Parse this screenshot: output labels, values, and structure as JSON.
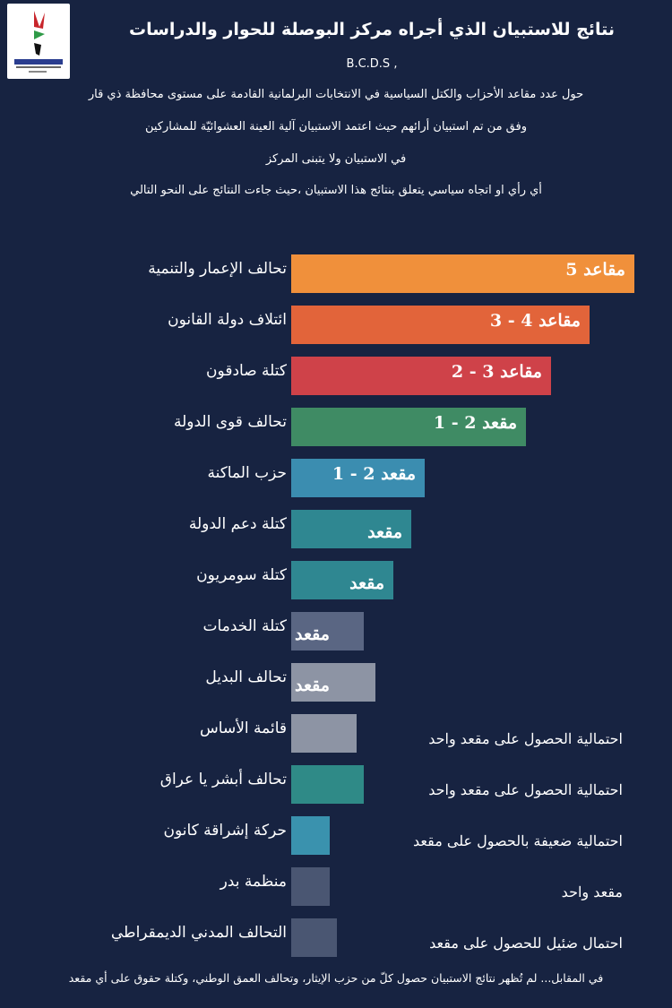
{
  "header": {
    "title": "نتائج للاستبيان الذي أجراه مركز البوصلة للحوار والدراسات",
    "org_abbr": "B.C.D.S ,",
    "lines": [
      "حول عدد مقاعد الأحزاب والكتل السياسية في الانتخابات البرلمانية القادمة على مستوى محافظة ذي قار",
      "وفق من تم استبيان أرائهم حيث اعتمد الاستبيان آلية العينة العشوائيّة للمشاركين",
      "في الاستبيان ولا يتبنى المركز",
      "أي رأي او اتجاه سياسي يتعلق بنتائج هذا الاستبيان ،حيث جاءت النتائج على النحو التالي"
    ]
  },
  "chart_data": {
    "type": "bar",
    "orientation": "horizontal",
    "categories": [
      "تحالف الإعمار والتنمية",
      "ائتلاف دولة القانون",
      "كتلة صادقون",
      "تحالف قوى الدولة",
      "حزب الماكنة",
      "كتلة دعم الدولة",
      "كتلة سومريون",
      "كتلة الخدمات",
      "تحالف البديل",
      "قائمة الأساس",
      "تحالف أبشر يا عراق",
      "حركة إشراقة كانون",
      "منظمة بدر",
      "التحالف المدني الديمقراطي"
    ],
    "bar_labels": [
      "مقاعد 5",
      "مقاعد 4 - 3",
      "مقاعد 3 - 2",
      "مقعد 2 - 1",
      "مقعد 2 - 1",
      "مقعد",
      "مقعد",
      "مقعد",
      "مقعد",
      "",
      "",
      "",
      "",
      ""
    ],
    "notes": [
      "",
      "",
      "",
      "",
      "",
      "",
      "",
      "",
      "",
      "احتمالية الحصول على مقعد واحد",
      "احتمالية الحصول على مقعد واحد",
      "احتمالية ضعيفة بالحصول على مقعد",
      "مقعد واحد",
      "احتمال ضئيل للحصول على مقعد"
    ],
    "colors": [
      "#f0903b",
      "#e2643a",
      "#cf4249",
      "#3f8b64",
      "#3b8db0",
      "#2f8791",
      "#2f8791",
      "#5a6683",
      "#8d94a4",
      "#8d94a4",
      "#2f8a87",
      "#3a92ae",
      "#4a5672",
      "#4a5672"
    ]
  },
  "footer": "في المقابل... لم تُظهر نتائج الاستبيان حصول كلّ من حزب الإيثار، وتحالف العمق الوطني، وكتلة حقوق على أي مقعد",
  "colors": {
    "background": "#172341"
  }
}
